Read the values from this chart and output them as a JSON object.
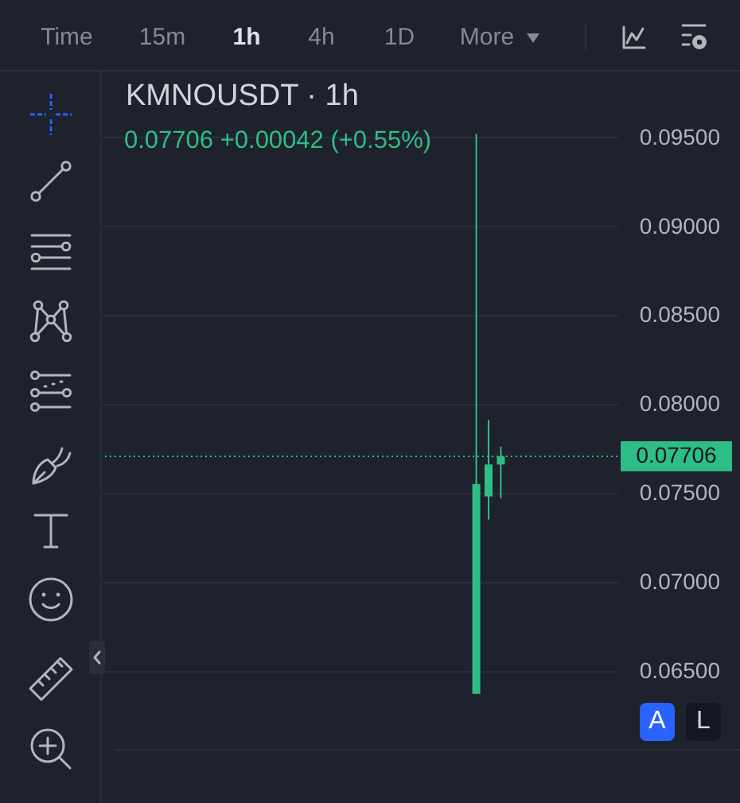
{
  "chart_data": {
    "type": "candlestick",
    "title": "KMNOUSDT · 1h",
    "subtitle": "0.07706 +0.00042 (+0.55%)",
    "categories": [
      null,
      null,
      null,
      null,
      null,
      null,
      null,
      null,
      null,
      null,
      null,
      null,
      null,
      null,
      null,
      null,
      null,
      null,
      null,
      null,
      null,
      null,
      null,
      null,
      null,
      null,
      null,
      null,
      null,
      null,
      null,
      null,
      null,
      null,
      null,
      null,
      null,
      null,
      null,
      null,
      null,
      null
    ],
    "ohlc": [
      null,
      null,
      null,
      null,
      null,
      null,
      null,
      null,
      null,
      null,
      null,
      null,
      null,
      null,
      null,
      null,
      null,
      null,
      null,
      null,
      null,
      null,
      null,
      null,
      null,
      null,
      null,
      null,
      null,
      null,
      [
        0.0637,
        0.0952,
        0.0637,
        0.0755
      ],
      [
        0.0748,
        0.0791,
        0.0735,
        0.0766
      ],
      [
        0.0766,
        0.0776,
        0.0747,
        0.07706
      ],
      null,
      null,
      null,
      null,
      null,
      null,
      null,
      null,
      null
    ],
    "color": "#2ebd85",
    "ylim": [
      0.0606,
      0.0987
    ],
    "yticks": [
      {
        "value": 0.065,
        "label": "0.06500"
      },
      {
        "value": 0.07,
        "label": "0.07000"
      },
      {
        "value": 0.075,
        "label": "0.07500"
      },
      {
        "value": 0.08,
        "label": "0.08000"
      },
      {
        "value": 0.085,
        "label": "0.08500"
      },
      {
        "value": 0.09,
        "label": "0.09000"
      },
      {
        "value": 0.095,
        "label": "0.09500"
      }
    ],
    "grid": "y",
    "tick_labels": "y",
    "ref_lines": [
      {
        "axis": "y",
        "value": 0.07706,
        "label": "0.07706",
        "color": "#2ebd85",
        "line_style": "dotted"
      }
    ],
    "annotations": [
      "Time",
      "15m",
      "1h",
      "4h",
      "1D",
      "More",
      "A",
      "L"
    ]
  }
}
